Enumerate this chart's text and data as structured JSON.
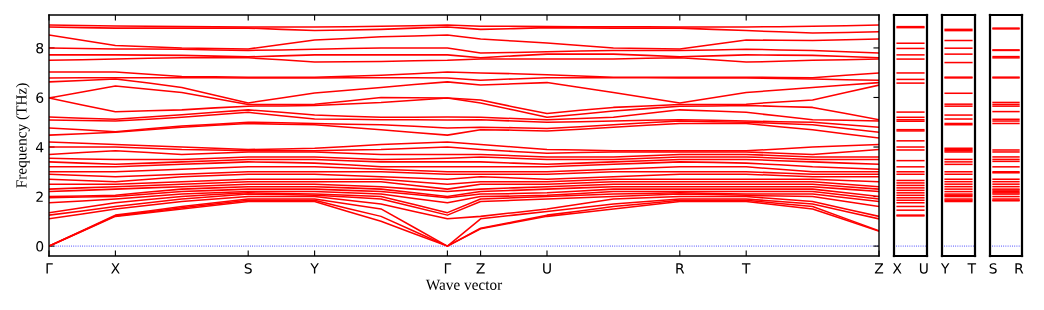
{
  "chart_data": [
    {
      "type": "line",
      "xlabel": "Wave vector",
      "ylabel": "Frequency (THz)",
      "grid": false,
      "marker": "none",
      "line_style": "solid",
      "categories": [
        "Γ",
        null,
        "X",
        null,
        null,
        null,
        "S",
        null,
        "Y",
        null,
        null,
        null,
        "Γ",
        "Z",
        null,
        "U",
        null,
        null,
        null,
        "R",
        null,
        "T",
        null,
        null,
        null,
        "Z"
      ],
      "ylim": [
        -0.4,
        9.33
      ],
      "yticks": [
        0,
        2,
        4,
        6,
        8
      ],
      "ref_lines": [
        {
          "axis": "y",
          "value": 0,
          "color": "#0000ff",
          "line_style": "dotted"
        }
      ],
      "series": [
        {
          "color": "#ff0000",
          "values": [
            0,
            0.6,
            1.2,
            1.35,
            1.5,
            1.65,
            1.8,
            1.8,
            1.8,
            1.4,
            1.0,
            0.5,
            0,
            0.7,
            0.95,
            1.2,
            1.35,
            1.5,
            1.65,
            1.8,
            1.8,
            1.8,
            1.65,
            1.5,
            1.05,
            0.6
          ]
        },
        {
          "color": "#ff0000",
          "values": [
            0,
            0.61,
            1.22,
            1.38,
            1.55,
            1.7,
            1.85,
            1.85,
            1.85,
            1.52,
            1.2,
            0.6,
            0,
            0.72,
            0.98,
            1.25,
            1.42,
            1.6,
            1.72,
            1.85,
            1.85,
            1.85,
            1.72,
            1.6,
            1.11,
            0.62
          ]
        },
        {
          "color": "#ff0000",
          "values": [
            0,
            0.62,
            1.25,
            1.42,
            1.6,
            1.75,
            1.9,
            1.9,
            1.9,
            1.7,
            1.5,
            0.75,
            0,
            1.1,
            1.25,
            1.4,
            1.55,
            1.7,
            1.8,
            1.9,
            1.9,
            1.9,
            1.8,
            1.7,
            1.4,
            1.1
          ]
        },
        {
          "color": "#ff0000",
          "values": [
            1.1,
            1.3,
            1.5,
            1.65,
            1.8,
            1.9,
            2.0,
            2.0,
            2.0,
            1.85,
            1.7,
            1.4,
            1.1,
            1.2,
            1.35,
            1.5,
            1.7,
            1.9,
            1.95,
            2.0,
            2.0,
            2.0,
            1.9,
            1.8,
            1.5,
            1.2
          ]
        },
        {
          "color": "#ff0000",
          "values": [
            1.25,
            1.42,
            1.6,
            1.75,
            1.9,
            2.0,
            2.1,
            2.08,
            2.05,
            1.98,
            1.9,
            1.58,
            1.25,
            1.8,
            1.85,
            1.9,
            1.95,
            2.0,
            2.05,
            2.1,
            2.08,
            2.05,
            2.02,
            2.0,
            1.8,
            1.6
          ]
        },
        {
          "color": "#ff0000",
          "values": [
            1.35,
            1.55,
            1.75,
            1.88,
            2.0,
            2.08,
            2.15,
            2.12,
            2.1,
            2.05,
            2.0,
            1.68,
            1.35,
            1.9,
            1.95,
            2.0,
            2.05,
            2.1,
            2.12,
            2.15,
            2.12,
            2.1,
            2.1,
            2.1,
            1.95,
            1.8
          ]
        },
        {
          "color": "#ff0000",
          "values": [
            1.75,
            1.82,
            1.9,
            2.0,
            2.1,
            2.15,
            2.2,
            2.2,
            2.2,
            2.15,
            2.1,
            1.92,
            1.75,
            2.0,
            2.02,
            2.05,
            2.12,
            2.2,
            2.2,
            2.2,
            2.2,
            2.2,
            2.2,
            2.2,
            2.05,
            1.9
          ]
        },
        {
          "color": "#ff0000",
          "values": [
            1.95,
            1.98,
            2.0,
            2.1,
            2.2,
            2.25,
            2.3,
            2.3,
            2.3,
            2.25,
            2.2,
            2.08,
            1.95,
            2.1,
            2.12,
            2.15,
            2.22,
            2.3,
            2.3,
            2.3,
            2.3,
            2.3,
            2.3,
            2.3,
            2.15,
            2.0
          ]
        },
        {
          "color": "#ff0000",
          "values": [
            2.0,
            2.02,
            2.05,
            2.18,
            2.3,
            2.35,
            2.4,
            2.4,
            2.4,
            2.35,
            2.3,
            2.15,
            2.0,
            2.2,
            2.25,
            2.3,
            2.35,
            2.4,
            2.4,
            2.4,
            2.4,
            2.4,
            2.4,
            2.4,
            2.3,
            2.2
          ]
        },
        {
          "color": "#ff0000",
          "values": [
            2.2,
            2.25,
            2.3,
            2.35,
            2.4,
            2.45,
            2.5,
            2.5,
            2.5,
            2.45,
            2.4,
            2.3,
            2.2,
            2.3,
            2.35,
            2.4,
            2.45,
            2.5,
            2.5,
            2.5,
            2.5,
            2.5,
            2.5,
            2.5,
            2.4,
            2.3
          ]
        },
        {
          "color": "#ff0000",
          "values": [
            2.3,
            2.35,
            2.4,
            2.45,
            2.5,
            2.55,
            2.6,
            2.6,
            2.6,
            2.6,
            2.6,
            2.45,
            2.3,
            2.5,
            2.5,
            2.5,
            2.55,
            2.6,
            2.6,
            2.6,
            2.6,
            2.6,
            2.6,
            2.6,
            2.5,
            2.4
          ]
        },
        {
          "color": "#ff0000",
          "values": [
            2.5,
            2.5,
            2.5,
            2.55,
            2.6,
            2.65,
            2.7,
            2.7,
            2.7,
            2.7,
            2.7,
            2.6,
            2.5,
            2.6,
            2.6,
            2.6,
            2.65,
            2.7,
            2.7,
            2.7,
            2.7,
            2.7,
            2.7,
            2.7,
            2.65,
            2.6
          ]
        },
        {
          "color": "#ff0000",
          "values": [
            2.7,
            2.65,
            2.6,
            2.7,
            2.8,
            2.85,
            2.9,
            2.9,
            2.9,
            2.85,
            2.8,
            2.75,
            2.7,
            2.8,
            2.75,
            2.7,
            2.75,
            2.8,
            2.85,
            2.9,
            2.9,
            2.9,
            2.85,
            2.8,
            2.8,
            2.8
          ]
        },
        {
          "color": "#ff0000",
          "values": [
            2.9,
            2.85,
            2.8,
            2.85,
            2.9,
            2.95,
            3.0,
            3.0,
            3.0,
            3.0,
            3.0,
            2.95,
            2.9,
            2.9,
            2.9,
            2.9,
            2.95,
            3.0,
            3.0,
            3.0,
            3.0,
            3.0,
            2.95,
            2.9,
            2.9,
            2.9
          ]
        },
        {
          "color": "#ff0000",
          "values": [
            3.0,
            3.0,
            3.0,
            3.05,
            3.1,
            3.15,
            3.2,
            3.2,
            3.2,
            3.15,
            3.1,
            3.05,
            3.0,
            3.0,
            3.0,
            3.0,
            3.05,
            3.1,
            3.15,
            3.2,
            3.2,
            3.2,
            3.1,
            3.0,
            3.0,
            3.0
          ]
        },
        {
          "color": "#ff0000",
          "values": [
            3.2,
            3.2,
            3.2,
            3.25,
            3.3,
            3.35,
            3.4,
            3.38,
            3.35,
            3.28,
            3.2,
            3.2,
            3.2,
            3.2,
            3.2,
            3.2,
            3.25,
            3.3,
            3.35,
            3.4,
            3.38,
            3.35,
            3.28,
            3.2,
            3.15,
            3.1
          ]
        },
        {
          "color": "#ff0000",
          "values": [
            3.4,
            3.35,
            3.3,
            3.35,
            3.4,
            3.45,
            3.5,
            3.5,
            3.5,
            3.45,
            3.4,
            3.4,
            3.4,
            3.4,
            3.35,
            3.3,
            3.35,
            3.4,
            3.45,
            3.5,
            3.5,
            3.5,
            3.45,
            3.4,
            3.35,
            3.3
          ]
        },
        {
          "color": "#ff0000",
          "values": [
            3.55,
            3.52,
            3.5,
            3.5,
            3.5,
            3.55,
            3.6,
            3.6,
            3.6,
            3.55,
            3.5,
            3.52,
            3.55,
            3.6,
            3.55,
            3.5,
            3.5,
            3.5,
            3.55,
            3.6,
            3.6,
            3.6,
            3.55,
            3.5,
            3.5,
            3.5
          ]
        },
        {
          "color": "#ff0000",
          "values": [
            3.7,
            3.78,
            3.85,
            3.78,
            3.7,
            3.75,
            3.8,
            3.8,
            3.8,
            3.75,
            3.7,
            3.7,
            3.7,
            3.7,
            3.65,
            3.6,
            3.6,
            3.6,
            3.65,
            3.7,
            3.7,
            3.7,
            3.65,
            3.6,
            3.6,
            3.6
          ]
        },
        {
          "color": "#ff0000",
          "values": [
            4.0,
            4.0,
            4.0,
            3.95,
            3.9,
            3.88,
            3.85,
            3.85,
            3.85,
            3.88,
            3.9,
            3.95,
            4.0,
            3.9,
            3.82,
            3.75,
            3.78,
            3.8,
            3.8,
            3.8,
            3.8,
            3.8,
            3.75,
            3.7,
            3.8,
            3.9
          ]
        },
        {
          "color": "#ff0000",
          "values": [
            4.2,
            4.15,
            4.1,
            4.05,
            4.0,
            3.95,
            3.9,
            3.92,
            3.95,
            4.02,
            4.1,
            4.15,
            4.2,
            4.1,
            4.0,
            3.9,
            3.88,
            3.85,
            3.85,
            3.85,
            3.85,
            3.85,
            3.92,
            4.0,
            4.05,
            4.1
          ]
        },
        {
          "color": "#ff0000",
          "values": [
            4.48,
            4.54,
            4.6,
            4.7,
            4.8,
            4.88,
            4.95,
            4.92,
            4.9,
            4.8,
            4.7,
            4.59,
            4.48,
            4.7,
            4.68,
            4.65,
            4.72,
            4.8,
            4.88,
            4.95,
            4.95,
            4.95,
            4.82,
            4.7,
            4.53,
            4.36
          ]
        },
        {
          "color": "#ff0000",
          "values": [
            4.77,
            4.7,
            4.62,
            4.74,
            4.85,
            4.92,
            5.0,
            4.98,
            4.95,
            4.92,
            4.9,
            4.84,
            4.77,
            4.8,
            4.78,
            4.75,
            4.82,
            4.9,
            4.98,
            5.05,
            5.02,
            5.0,
            4.95,
            4.9,
            4.75,
            4.6
          ]
        },
        {
          "color": "#ff0000",
          "values": [
            5.09,
            5.07,
            5.05,
            5.12,
            5.2,
            5.3,
            5.4,
            5.26,
            5.13,
            5.12,
            5.1,
            5.1,
            5.09,
            5.1,
            5.05,
            5.0,
            5.02,
            5.05,
            5.08,
            5.1,
            5.08,
            5.05,
            5.02,
            5.0,
            4.9,
            4.8
          ]
        },
        {
          "color": "#ff0000",
          "values": [
            5.21,
            5.16,
            5.12,
            5.21,
            5.3,
            5.4,
            5.5,
            5.4,
            5.29,
            5.24,
            5.2,
            5.2,
            5.21,
            5.2,
            5.15,
            5.1,
            5.15,
            5.2,
            5.35,
            5.5,
            5.45,
            5.4,
            5.25,
            5.1,
            5.08,
            5.05
          ]
        },
        {
          "color": "#ff0000",
          "values": [
            5.98,
            5.7,
            5.42,
            5.46,
            5.5,
            5.58,
            5.65,
            5.66,
            5.68,
            5.74,
            5.8,
            5.89,
            5.98,
            5.78,
            5.49,
            5.2,
            5.32,
            5.45,
            5.55,
            5.65,
            5.66,
            5.68,
            5.64,
            5.6,
            5.35,
            5.1
          ]
        },
        {
          "color": "#ff0000",
          "values": [
            5.98,
            6.22,
            6.46,
            6.33,
            6.2,
            5.96,
            5.72,
            5.72,
            5.73,
            5.86,
            6.0,
            5.99,
            5.98,
            5.9,
            5.62,
            5.35,
            5.48,
            5.6,
            5.66,
            5.72,
            5.72,
            5.73,
            5.82,
            5.9,
            6.2,
            6.5
          ]
        },
        {
          "color": "#ff0000",
          "values": [
            6.63,
            6.69,
            6.75,
            6.58,
            6.4,
            6.09,
            5.78,
            5.98,
            6.18,
            6.29,
            6.4,
            6.52,
            6.63,
            6.5,
            6.55,
            6.6,
            6.4,
            6.2,
            5.99,
            5.78,
            5.99,
            6.2,
            6.3,
            6.4,
            6.5,
            6.6
          ]
        },
        {
          "color": "#ff0000",
          "values": [
            6.79,
            6.8,
            6.8,
            6.8,
            6.8,
            6.8,
            6.79,
            6.79,
            6.79,
            6.8,
            6.8,
            6.8,
            6.79,
            6.7,
            6.75,
            6.8,
            6.8,
            6.8,
            6.8,
            6.79,
            6.79,
            6.79,
            6.77,
            6.75,
            6.72,
            6.7
          ]
        },
        {
          "color": "#ff0000",
          "values": [
            7.03,
            7.03,
            7.03,
            6.94,
            6.85,
            6.84,
            6.82,
            6.82,
            6.82,
            6.86,
            6.9,
            6.96,
            7.03,
            6.99,
            6.96,
            6.92,
            6.87,
            6.82,
            6.82,
            6.82,
            6.82,
            6.82,
            6.81,
            6.8,
            6.9,
            6.99
          ]
        },
        {
          "color": "#ff0000",
          "values": [
            7.5,
            7.52,
            7.55,
            7.58,
            7.6,
            7.6,
            7.6,
            7.52,
            7.43,
            7.44,
            7.45,
            7.48,
            7.5,
            7.55,
            7.55,
            7.55,
            7.55,
            7.55,
            7.58,
            7.6,
            7.52,
            7.43,
            7.46,
            7.5,
            7.52,
            7.55
          ]
        },
        {
          "color": "#ff0000",
          "values": [
            7.72,
            7.72,
            7.72,
            7.71,
            7.7,
            7.67,
            7.64,
            7.68,
            7.72,
            7.72,
            7.72,
            7.72,
            7.72,
            7.6,
            7.68,
            7.75,
            7.75,
            7.75,
            7.7,
            7.64,
            7.68,
            7.72,
            7.71,
            7.7,
            7.65,
            7.6
          ]
        },
        {
          "color": "#ff0000",
          "values": [
            8.0,
            7.98,
            7.96,
            7.96,
            7.95,
            7.92,
            7.9,
            7.92,
            7.95,
            7.98,
            8.0,
            8.0,
            8.0,
            7.8,
            7.82,
            7.85,
            7.88,
            7.9,
            7.9,
            7.9,
            7.92,
            7.95,
            7.92,
            7.9,
            7.85,
            7.8
          ]
        },
        {
          "color": "#ff0000",
          "values": [
            8.52,
            8.31,
            8.1,
            8.05,
            8.0,
            7.98,
            7.96,
            8.14,
            8.32,
            8.38,
            8.45,
            8.48,
            8.52,
            8.36,
            8.28,
            8.2,
            8.1,
            8.0,
            7.98,
            7.96,
            8.14,
            8.32,
            8.31,
            8.3,
            8.33,
            8.36
          ]
        },
        {
          "color": "#ff0000",
          "values": [
            8.85,
            8.82,
            8.8,
            8.8,
            8.8,
            8.8,
            8.8,
            8.75,
            8.7,
            8.72,
            8.75,
            8.8,
            8.85,
            8.75,
            8.78,
            8.82,
            8.81,
            8.8,
            8.8,
            8.8,
            8.75,
            8.7,
            8.65,
            8.6,
            8.62,
            8.65
          ]
        },
        {
          "color": "#ff0000",
          "values": [
            8.93,
            8.91,
            8.89,
            8.88,
            8.87,
            8.86,
            8.85,
            8.85,
            8.85,
            8.86,
            8.88,
            8.9,
            8.93,
            8.88,
            8.88,
            8.87,
            8.86,
            8.86,
            8.86,
            8.85,
            8.85,
            8.85,
            8.86,
            8.88,
            8.9,
            8.93
          ]
        }
      ]
    },
    {
      "type": "line",
      "grid": false,
      "marker": "none",
      "line_style": "solid",
      "tick_labels": "x",
      "categories": [
        "X",
        "U"
      ],
      "ylim": [
        -0.4,
        9.33
      ],
      "yticks": [
        0,
        2,
        4,
        6,
        8
      ],
      "ref_lines": [
        {
          "axis": "y",
          "value": 0,
          "color": "#0000ff",
          "line_style": "dotted"
        }
      ],
      "series": [
        {
          "color": "#ff0000",
          "values": [
            1.22,
            1.22
          ]
        },
        {
          "color": "#ff0000",
          "values": [
            1.25,
            1.25
          ]
        },
        {
          "color": "#ff0000",
          "values": [
            1.45,
            1.45
          ]
        },
        {
          "color": "#ff0000",
          "values": [
            1.6,
            1.6
          ]
        },
        {
          "color": "#ff0000",
          "values": [
            1.75,
            1.75
          ]
        },
        {
          "color": "#ff0000",
          "values": [
            1.85,
            1.85
          ]
        },
        {
          "color": "#ff0000",
          "values": [
            1.95,
            1.95
          ]
        },
        {
          "color": "#ff0000",
          "values": [
            2.05,
            2.05
          ]
        },
        {
          "color": "#ff0000",
          "values": [
            2.15,
            2.15
          ]
        },
        {
          "color": "#ff0000",
          "values": [
            2.25,
            2.25
          ]
        },
        {
          "color": "#ff0000",
          "values": [
            2.35,
            2.35
          ]
        },
        {
          "color": "#ff0000",
          "values": [
            2.45,
            2.45
          ]
        },
        {
          "color": "#ff0000",
          "values": [
            2.55,
            2.55
          ]
        },
        {
          "color": "#ff0000",
          "values": [
            2.65,
            2.65
          ]
        },
        {
          "color": "#ff0000",
          "values": [
            2.9,
            2.9
          ]
        },
        {
          "color": "#ff0000",
          "values": [
            3.0,
            3.0
          ]
        },
        {
          "color": "#ff0000",
          "values": [
            3.2,
            3.2
          ]
        },
        {
          "color": "#ff0000",
          "values": [
            3.45,
            3.45
          ]
        },
        {
          "color": "#ff0000",
          "values": [
            3.88,
            3.88
          ]
        },
        {
          "color": "#ff0000",
          "values": [
            4.0,
            4.0
          ]
        },
        {
          "color": "#ff0000",
          "values": [
            4.25,
            4.25
          ]
        },
        {
          "color": "#ff0000",
          "values": [
            4.65,
            4.65
          ]
        },
        {
          "color": "#ff0000",
          "values": [
            4.7,
            4.7
          ]
        },
        {
          "color": "#ff0000",
          "values": [
            5.04,
            5.04
          ]
        },
        {
          "color": "#ff0000",
          "values": [
            5.1,
            5.1
          ]
        },
        {
          "color": "#ff0000",
          "values": [
            5.2,
            5.2
          ]
        },
        {
          "color": "#ff0000",
          "values": [
            5.41,
            5.41
          ]
        },
        {
          "color": "#ff0000",
          "values": [
            6.58,
            6.58
          ]
        },
        {
          "color": "#ff0000",
          "values": [
            6.73,
            6.73
          ]
        },
        {
          "color": "#ff0000",
          "values": [
            6.99,
            6.99
          ]
        },
        {
          "color": "#ff0000",
          "values": [
            7.55,
            7.55
          ]
        },
        {
          "color": "#ff0000",
          "values": [
            7.72,
            7.72
          ]
        },
        {
          "color": "#ff0000",
          "values": [
            7.98,
            7.98
          ]
        },
        {
          "color": "#ff0000",
          "values": [
            8.19,
            8.19
          ]
        },
        {
          "color": "#ff0000",
          "values": [
            8.82,
            8.82
          ]
        },
        {
          "color": "#ff0000",
          "values": [
            8.86,
            8.86
          ]
        }
      ]
    },
    {
      "type": "line",
      "grid": false,
      "marker": "none",
      "line_style": "solid",
      "tick_labels": "x",
      "categories": [
        "Y",
        "T"
      ],
      "ylim": [
        -0.4,
        9.33
      ],
      "yticks": [
        0,
        2,
        4,
        6,
        8
      ],
      "ref_lines": [
        {
          "axis": "y",
          "value": 0,
          "color": "#0000ff",
          "line_style": "dotted"
        }
      ],
      "series": [
        {
          "color": "#ff0000",
          "values": [
            1.8,
            1.8
          ]
        },
        {
          "color": "#ff0000",
          "values": [
            1.85,
            1.85
          ]
        },
        {
          "color": "#ff0000",
          "values": [
            1.9,
            1.9
          ]
        },
        {
          "color": "#ff0000",
          "values": [
            2.0,
            2.0
          ]
        },
        {
          "color": "#ff0000",
          "values": [
            2.05,
            2.05
          ]
        },
        {
          "color": "#ff0000",
          "values": [
            2.1,
            2.1
          ]
        },
        {
          "color": "#ff0000",
          "values": [
            2.2,
            2.2
          ]
        },
        {
          "color": "#ff0000",
          "values": [
            2.3,
            2.3
          ]
        },
        {
          "color": "#ff0000",
          "values": [
            2.4,
            2.4
          ]
        },
        {
          "color": "#ff0000",
          "values": [
            2.5,
            2.5
          ]
        },
        {
          "color": "#ff0000",
          "values": [
            2.6,
            2.6
          ]
        },
        {
          "color": "#ff0000",
          "values": [
            2.7,
            2.7
          ]
        },
        {
          "color": "#ff0000",
          "values": [
            2.9,
            2.9
          ]
        },
        {
          "color": "#ff0000",
          "values": [
            3.0,
            3.0
          ]
        },
        {
          "color": "#ff0000",
          "values": [
            3.3,
            3.3
          ]
        },
        {
          "color": "#ff0000",
          "values": [
            3.4,
            3.4
          ]
        },
        {
          "color": "#ff0000",
          "values": [
            3.5,
            3.5
          ]
        },
        {
          "color": "#ff0000",
          "values": [
            3.8,
            3.8
          ]
        },
        {
          "color": "#ff0000",
          "values": [
            3.85,
            3.85
          ]
        },
        {
          "color": "#ff0000",
          "values": [
            3.9,
            3.9
          ]
        },
        {
          "color": "#ff0000",
          "values": [
            3.95,
            3.95
          ]
        },
        {
          "color": "#ff0000",
          "values": [
            4.9,
            4.9
          ]
        },
        {
          "color": "#ff0000",
          "values": [
            4.95,
            4.95
          ]
        },
        {
          "color": "#ff0000",
          "values": [
            5.13,
            5.13
          ]
        },
        {
          "color": "#ff0000",
          "values": [
            5.29,
            5.29
          ]
        },
        {
          "color": "#ff0000",
          "values": [
            5.65,
            5.65
          ]
        },
        {
          "color": "#ff0000",
          "values": [
            5.73,
            5.73
          ]
        },
        {
          "color": "#ff0000",
          "values": [
            6.17,
            6.17
          ]
        },
        {
          "color": "#ff0000",
          "values": [
            6.79,
            6.79
          ]
        },
        {
          "color": "#ff0000",
          "values": [
            6.82,
            6.82
          ]
        },
        {
          "color": "#ff0000",
          "values": [
            7.41,
            7.41
          ]
        },
        {
          "color": "#ff0000",
          "values": [
            7.75,
            7.75
          ]
        },
        {
          "color": "#ff0000",
          "values": [
            7.99,
            7.99
          ]
        },
        {
          "color": "#ff0000",
          "values": [
            8.3,
            8.3
          ]
        },
        {
          "color": "#ff0000",
          "values": [
            8.7,
            8.7
          ]
        },
        {
          "color": "#ff0000",
          "values": [
            8.75,
            8.75
          ]
        }
      ]
    },
    {
      "type": "line",
      "grid": false,
      "marker": "none",
      "line_style": "solid",
      "tick_labels": "x",
      "categories": [
        "S",
        "R"
      ],
      "ylim": [
        -0.4,
        9.33
      ],
      "yticks": [
        0,
        2,
        4,
        6,
        8
      ],
      "ref_lines": [
        {
          "axis": "y",
          "value": 0,
          "color": "#0000ff",
          "line_style": "dotted"
        }
      ],
      "series": [
        {
          "color": "#ff0000",
          "values": [
            1.83,
            1.83
          ]
        },
        {
          "color": "#ff0000",
          "values": [
            1.85,
            1.85
          ]
        },
        {
          "color": "#ff0000",
          "values": [
            1.9,
            1.9
          ]
        },
        {
          "color": "#ff0000",
          "values": [
            2.0,
            2.0
          ]
        },
        {
          "color": "#ff0000",
          "values": [
            2.1,
            2.1
          ]
        },
        {
          "color": "#ff0000",
          "values": [
            2.15,
            2.15
          ]
        },
        {
          "color": "#ff0000",
          "values": [
            2.2,
            2.2
          ]
        },
        {
          "color": "#ff0000",
          "values": [
            2.26,
            2.26
          ]
        },
        {
          "color": "#ff0000",
          "values": [
            2.3,
            2.3
          ]
        },
        {
          "color": "#ff0000",
          "values": [
            2.4,
            2.4
          ]
        },
        {
          "color": "#ff0000",
          "values": [
            2.5,
            2.5
          ]
        },
        {
          "color": "#ff0000",
          "values": [
            2.6,
            2.6
          ]
        },
        {
          "color": "#ff0000",
          "values": [
            2.7,
            2.7
          ]
        },
        {
          "color": "#ff0000",
          "values": [
            2.96,
            2.96
          ]
        },
        {
          "color": "#ff0000",
          "values": [
            3.0,
            3.0
          ]
        },
        {
          "color": "#ff0000",
          "values": [
            3.2,
            3.2
          ]
        },
        {
          "color": "#ff0000",
          "values": [
            3.42,
            3.42
          ]
        },
        {
          "color": "#ff0000",
          "values": [
            3.5,
            3.5
          ]
        },
        {
          "color": "#ff0000",
          "values": [
            3.6,
            3.6
          ]
        },
        {
          "color": "#ff0000",
          "values": [
            3.8,
            3.8
          ]
        },
        {
          "color": "#ff0000",
          "values": [
            3.88,
            3.88
          ]
        },
        {
          "color": "#ff0000",
          "values": [
            4.95,
            4.95
          ]
        },
        {
          "color": "#ff0000",
          "values": [
            5.05,
            5.05
          ]
        },
        {
          "color": "#ff0000",
          "values": [
            5.12,
            5.12
          ]
        },
        {
          "color": "#ff0000",
          "values": [
            5.43,
            5.43
          ]
        },
        {
          "color": "#ff0000",
          "values": [
            5.65,
            5.65
          ]
        },
        {
          "color": "#ff0000",
          "values": [
            5.72,
            5.72
          ]
        },
        {
          "color": "#ff0000",
          "values": [
            5.8,
            5.8
          ]
        },
        {
          "color": "#ff0000",
          "values": [
            6.79,
            6.79
          ]
        },
        {
          "color": "#ff0000",
          "values": [
            6.82,
            6.82
          ]
        },
        {
          "color": "#ff0000",
          "values": [
            7.6,
            7.6
          ]
        },
        {
          "color": "#ff0000",
          "values": [
            7.65,
            7.65
          ]
        },
        {
          "color": "#ff0000",
          "values": [
            7.9,
            7.9
          ]
        },
        {
          "color": "#ff0000",
          "values": [
            7.92,
            7.92
          ]
        },
        {
          "color": "#ff0000",
          "values": [
            8.77,
            8.77
          ]
        },
        {
          "color": "#ff0000",
          "values": [
            8.8,
            8.8
          ]
        }
      ]
    }
  ]
}
